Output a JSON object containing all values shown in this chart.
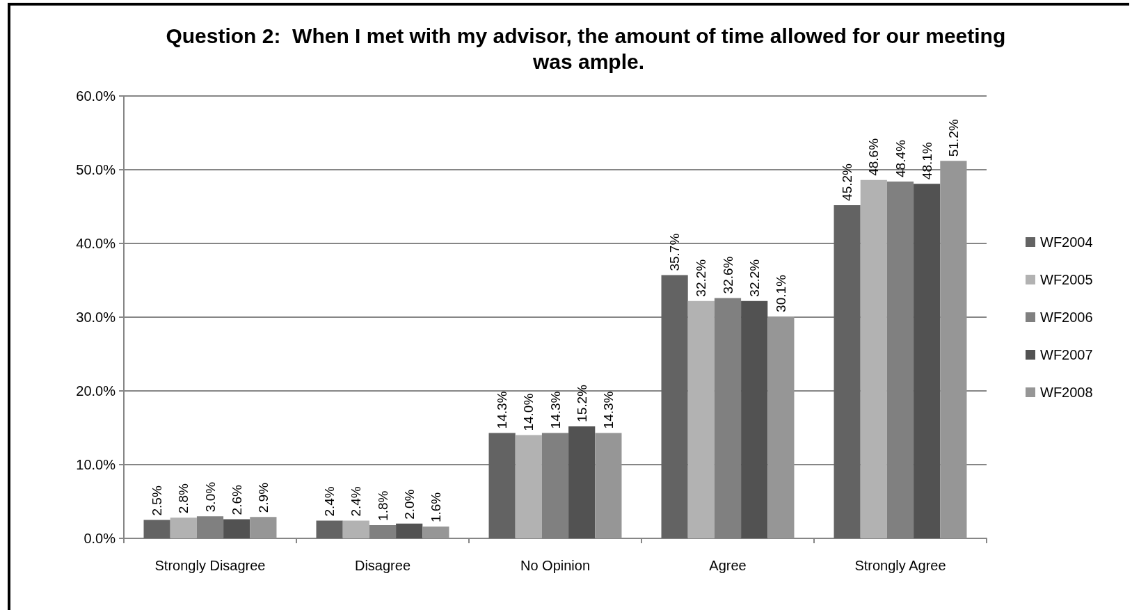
{
  "chart_data": {
    "type": "bar",
    "title": "Question 2:  When I met with my advisor, the amount of time allowed for our meeting was ample.",
    "categories": [
      "Strongly Disagree",
      "Disagree",
      "No Opinion",
      "Agree",
      "Strongly Agree"
    ],
    "series": [
      {
        "name": "WF2004",
        "color": "#636363",
        "values": [
          2.5,
          2.4,
          14.3,
          35.7,
          45.2
        ],
        "value_labels": [
          "2.5%",
          "2.4%",
          "14.3%",
          "35.7%",
          "45.2%"
        ]
      },
      {
        "name": "WF2005",
        "color": "#b2b2b2",
        "values": [
          2.8,
          2.4,
          14.0,
          32.2,
          48.6
        ],
        "value_labels": [
          "2.8%",
          "2.4%",
          "14.0%",
          "32.2%",
          "48.6%"
        ]
      },
      {
        "name": "WF2006",
        "color": "#808080",
        "values": [
          3.0,
          1.8,
          14.3,
          32.6,
          48.4
        ],
        "value_labels": [
          "3.0%",
          "1.8%",
          "14.3%",
          "32.6%",
          "48.4%"
        ]
      },
      {
        "name": "WF2007",
        "color": "#525252",
        "values": [
          2.6,
          2.0,
          15.2,
          32.2,
          48.1
        ],
        "value_labels": [
          "2.6%",
          "2.0%",
          "15.2%",
          "32.2%",
          "48.1%"
        ]
      },
      {
        "name": "WF2008",
        "color": "#969696",
        "values": [
          2.9,
          1.6,
          14.3,
          30.1,
          51.2
        ],
        "value_labels": [
          "2.9%",
          "1.6%",
          "14.3%",
          "30.1%",
          "51.2%"
        ]
      }
    ],
    "ylim": [
      0,
      60
    ],
    "yticks": [
      {
        "value": 0,
        "label": "0.0%"
      },
      {
        "value": 10,
        "label": "10.0%"
      },
      {
        "value": 20,
        "label": "20.0%"
      },
      {
        "value": 30,
        "label": "30.0%"
      },
      {
        "value": 40,
        "label": "40.0%"
      },
      {
        "value": 50,
        "label": "50.0%"
      },
      {
        "value": 60,
        "label": "60.0%"
      }
    ],
    "grid": "y",
    "legend": "right"
  }
}
